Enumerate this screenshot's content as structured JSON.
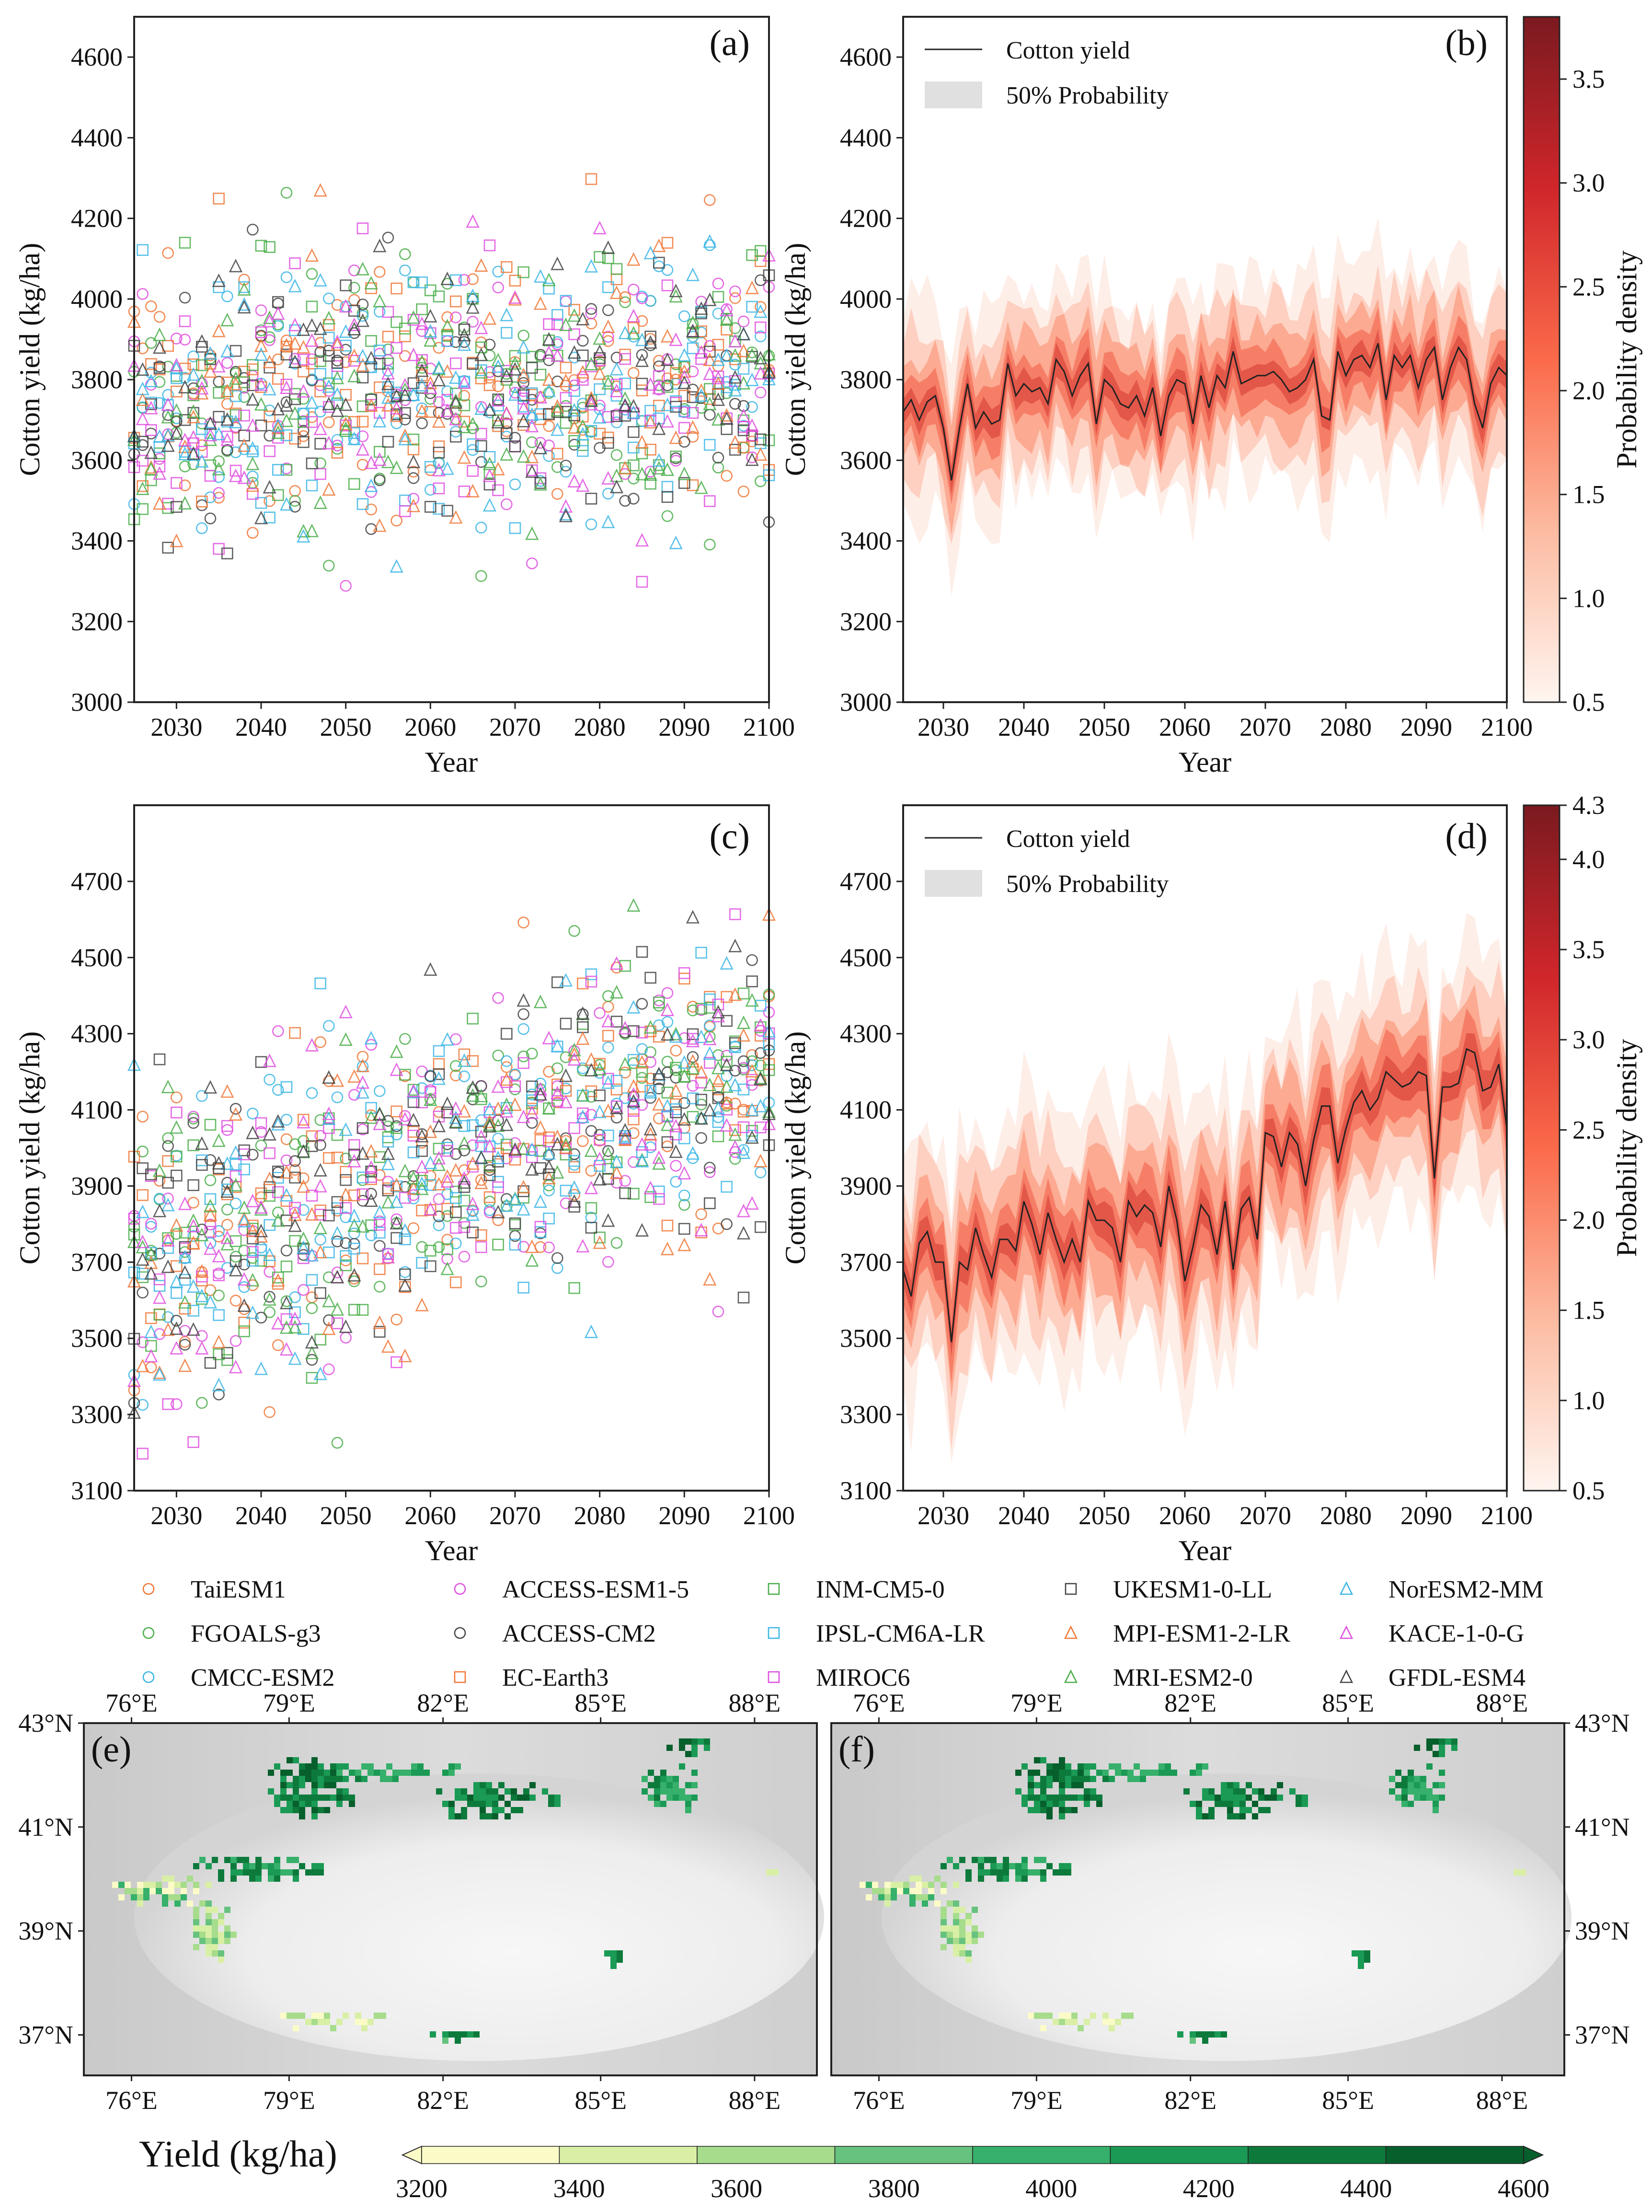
{
  "figure": {
    "markers": {
      "TaiESM1": "circle",
      "FGOALS-g3": "circle",
      "CMCC-ESM2": "circle",
      "ACCESS-ESM1-5": "circle",
      "ACCESS-CM2": "circle",
      "EC-Earth3": "square",
      "INM-CM5-0": "square",
      "IPSL-CM6A-LR": "square",
      "MIROC6": "square",
      "UKESM1-0-LL": "square",
      "MPI-ESM1-2-LR": "triangle",
      "MRI-ESM2-0": "triangle",
      "NorESM2-MM": "triangle",
      "KACE-1-0-G": "triangle",
      "GFDL-ESM4": "triangle"
    },
    "legend_columns": [
      [
        "TaiESM1",
        "FGOALS-g3",
        "CMCC-ESM2"
      ],
      [
        "ACCESS-ESM1-5",
        "ACCESS-CM2",
        "EC-Earth3"
      ],
      [
        "INM-CM5-0",
        "IPSL-CM6A-LR",
        "MIROC6"
      ],
      [
        "UKESM1-0-LL",
        "MPI-ESM1-2-LR",
        "MRI-ESM2-0"
      ],
      [
        "NorESM2-MM",
        "KACE-1-0-G",
        "GFDL-ESM4"
      ]
    ]
  },
  "chart_data": [
    {
      "panel": "(a)",
      "type": "scatter",
      "xlabel": "Year",
      "ylabel": "Cotton yield (kg/ha)",
      "xlim": [
        2025,
        2100
      ],
      "ylim": [
        3000,
        4700
      ],
      "xticks": [
        2030,
        2040,
        2050,
        2060,
        2070,
        2080,
        2090,
        2100
      ],
      "yticks": [
        3000,
        3200,
        3400,
        3600,
        3800,
        4000,
        4200,
        4400,
        4600
      ],
      "trend_start": 3730,
      "trend_end": 3810,
      "spread": 165,
      "series": [
        {
          "name": "TaiESM1",
          "color": "#f07838"
        },
        {
          "name": "FGOALS-g3",
          "color": "#4aae4a"
        },
        {
          "name": "CMCC-ESM2",
          "color": "#3cb6e6"
        },
        {
          "name": "ACCESS-ESM1-5",
          "color": "#e050e0"
        },
        {
          "name": "ACCESS-CM2",
          "color": "#444444"
        },
        {
          "name": "EC-Earth3",
          "color": "#f07838"
        },
        {
          "name": "INM-CM5-0",
          "color": "#4aae4a"
        },
        {
          "name": "IPSL-CM6A-LR",
          "color": "#3cb6e6"
        },
        {
          "name": "MIROC6",
          "color": "#e050e0"
        },
        {
          "name": "UKESM1-0-LL",
          "color": "#444444"
        },
        {
          "name": "MPI-ESM1-2-LR",
          "color": "#f07838"
        },
        {
          "name": "MRI-ESM2-0",
          "color": "#4aae4a"
        },
        {
          "name": "NorESM2-MM",
          "color": "#3cb6e6"
        },
        {
          "name": "KACE-1-0-G",
          "color": "#e050e0"
        },
        {
          "name": "GFDL-ESM4",
          "color": "#444444"
        }
      ]
    },
    {
      "panel": "(b)",
      "type": "line",
      "xlabel": "Year",
      "ylabel": "Cotton yield (kg/ha)",
      "xlim": [
        2025,
        2100
      ],
      "ylim": [
        3000,
        4700
      ],
      "xticks": [
        2030,
        2040,
        2050,
        2060,
        2070,
        2080,
        2090,
        2100
      ],
      "yticks": [
        3000,
        3200,
        3400,
        3600,
        3800,
        4000,
        4200,
        4400,
        4600
      ],
      "legend": [
        "Cotton yield",
        "50% Probability"
      ],
      "colorbar_label": "Probability density",
      "colorbar_ticks": [
        "0.5",
        "1.0",
        "1.5",
        "2.0",
        "2.5",
        "3.0",
        "3.5"
      ],
      "colorbar_range": [
        0.5,
        3.8
      ],
      "x": [
        2025,
        2026,
        2027,
        2028,
        2029,
        2030,
        2031,
        2032,
        2033,
        2034,
        2035,
        2036,
        2037,
        2038,
        2039,
        2040,
        2041,
        2042,
        2043,
        2044,
        2045,
        2046,
        2047,
        2048,
        2049,
        2050,
        2051,
        2052,
        2053,
        2054,
        2055,
        2056,
        2057,
        2058,
        2059,
        2060,
        2061,
        2062,
        2063,
        2064,
        2065,
        2066,
        2067,
        2068,
        2069,
        2070,
        2071,
        2072,
        2073,
        2074,
        2075,
        2076,
        2077,
        2078,
        2079,
        2080,
        2081,
        2082,
        2083,
        2084,
        2085,
        2086,
        2087,
        2088,
        2089,
        2090,
        2091,
        2092,
        2093,
        2094,
        2095,
        2096,
        2097,
        2098,
        2099,
        2100
      ],
      "values": [
        3720,
        3750,
        3700,
        3745,
        3760,
        3680,
        3550,
        3680,
        3790,
        3680,
        3720,
        3690,
        3700,
        3840,
        3760,
        3790,
        3770,
        3780,
        3740,
        3850,
        3820,
        3760,
        3810,
        3840,
        3690,
        3800,
        3780,
        3740,
        3730,
        3760,
        3710,
        3780,
        3660,
        3760,
        3800,
        3790,
        3690,
        3810,
        3730,
        3810,
        3780,
        3870,
        3790,
        3800,
        3810,
        3810,
        3820,
        3800,
        3770,
        3780,
        3800,
        3850,
        3710,
        3700,
        3870,
        3810,
        3850,
        3860,
        3830,
        3890,
        3750,
        3860,
        3830,
        3860,
        3780,
        3850,
        3880,
        3750,
        3830,
        3880,
        3850,
        3740,
        3680,
        3790,
        3830,
        3810
      ],
      "band_half_width": 115
    },
    {
      "panel": "(c)",
      "type": "scatter",
      "xlabel": "Year",
      "ylabel": "Cotton yield (kg/ha)",
      "xlim": [
        2025,
        2100
      ],
      "ylim": [
        3100,
        4900
      ],
      "xticks": [
        2030,
        2040,
        2050,
        2060,
        2070,
        2080,
        2090,
        2100
      ],
      "yticks": [
        3100,
        3300,
        3500,
        3700,
        3900,
        4100,
        4300,
        4500,
        4700
      ],
      "trend_start": 3680,
      "trend_end": 4220,
      "spread": 200
    },
    {
      "panel": "(d)",
      "type": "line",
      "xlabel": "Year",
      "ylabel": "Cotton yield (kg/ha)",
      "xlim": [
        2025,
        2100
      ],
      "ylim": [
        3100,
        4900
      ],
      "xticks": [
        2030,
        2040,
        2050,
        2060,
        2070,
        2080,
        2090,
        2100
      ],
      "yticks": [
        3100,
        3300,
        3500,
        3700,
        3900,
        4100,
        4300,
        4500,
        4700
      ],
      "legend": [
        "Cotton yield",
        "50% Probability"
      ],
      "colorbar_label": "Probability density",
      "colorbar_ticks": [
        "0.5",
        "1.0",
        "1.5",
        "2.0",
        "2.5",
        "3.0",
        "3.5",
        "4.0",
        "4.3"
      ],
      "colorbar_range": [
        0.5,
        4.3
      ],
      "x": [
        2025,
        2026,
        2027,
        2028,
        2029,
        2030,
        2031,
        2032,
        2033,
        2034,
        2035,
        2036,
        2037,
        2038,
        2039,
        2040,
        2041,
        2042,
        2043,
        2044,
        2045,
        2046,
        2047,
        2048,
        2049,
        2050,
        2051,
        2052,
        2053,
        2054,
        2055,
        2056,
        2057,
        2058,
        2059,
        2060,
        2061,
        2062,
        2063,
        2064,
        2065,
        2066,
        2067,
        2068,
        2069,
        2070,
        2071,
        2072,
        2073,
        2074,
        2075,
        2076,
        2077,
        2078,
        2079,
        2080,
        2081,
        2082,
        2083,
        2084,
        2085,
        2086,
        2087,
        2088,
        2089,
        2090,
        2091,
        2092,
        2093,
        2094,
        2095,
        2096,
        2097,
        2098,
        2099,
        2100
      ],
      "values": [
        3680,
        3610,
        3750,
        3780,
        3700,
        3700,
        3490,
        3700,
        3680,
        3790,
        3720,
        3660,
        3760,
        3760,
        3730,
        3860,
        3800,
        3720,
        3830,
        3760,
        3700,
        3760,
        3700,
        3860,
        3810,
        3810,
        3790,
        3700,
        3860,
        3820,
        3850,
        3830,
        3740,
        3900,
        3810,
        3650,
        3740,
        3850,
        3820,
        3720,
        3860,
        3680,
        3840,
        3870,
        3760,
        4040,
        4030,
        3950,
        4040,
        4010,
        3900,
        4020,
        4110,
        4110,
        3960,
        4050,
        4120,
        4150,
        4100,
        4130,
        4200,
        4180,
        4160,
        4170,
        4200,
        4190,
        3920,
        4160,
        4160,
        4170,
        4260,
        4250,
        4150,
        4160,
        4220,
        4050
      ],
      "band_half_width": 150
    }
  ],
  "maps": {
    "top_axis_ticks": [
      "76°E",
      "79°E",
      "82°E",
      "85°E",
      "88°E"
    ],
    "bottom_axis_ticks": [
      "76°E",
      "79°E",
      "82°E",
      "85°E",
      "88°E"
    ],
    "left_axis_ticks": [
      "43°N",
      "41°N",
      "39°N",
      "37°N"
    ],
    "right_axis_ticks": [
      "43°N",
      "41°N",
      "39°N",
      "37°N"
    ],
    "panel_labels": [
      "(e)",
      "(f)"
    ],
    "colorbar": {
      "label": "Yield (kg/ha)",
      "ticks": [
        "3200",
        "3400",
        "3600",
        "3800",
        "4000",
        "4200",
        "4400",
        "4600"
      ],
      "colors": [
        "#fbfbc8",
        "#d9efa6",
        "#a6dc8c",
        "#66c27e",
        "#36b06a",
        "#1a9a54",
        "#0d7a3c",
        "#075f2c"
      ]
    }
  }
}
